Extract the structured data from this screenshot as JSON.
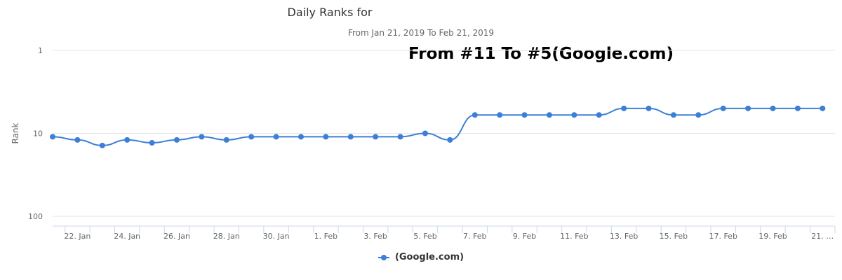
{
  "chart_data": {
    "type": "line",
    "title": "Daily Ranks for",
    "subtitle": "From Jan 21, 2019 To Feb 21, 2019",
    "annotation": "From #11 To #5(Google.com)",
    "ylabel": "Rank",
    "y_scale": "log",
    "y_reversed": true,
    "ylim": [
      1,
      100
    ],
    "y_ticks": [
      "1",
      "10",
      "100"
    ],
    "x_tick_labels": [
      "22. Jan",
      "24. Jan",
      "26. Jan",
      "28. Jan",
      "30. Jan",
      "1. Feb",
      "3. Feb",
      "5. Feb",
      "7. Feb",
      "9. Feb",
      "11. Feb",
      "13. Feb",
      "15. Feb",
      "17. Feb",
      "19. Feb",
      "21. …"
    ],
    "x": [
      "Jan 21",
      "Jan 22",
      "Jan 23",
      "Jan 24",
      "Jan 25",
      "Jan 26",
      "Jan 27",
      "Jan 28",
      "Jan 29",
      "Jan 30",
      "Jan 31",
      "Feb 1",
      "Feb 2",
      "Feb 3",
      "Feb 4",
      "Feb 5",
      "Feb 6",
      "Feb 7",
      "Feb 8",
      "Feb 9",
      "Feb 10",
      "Feb 11",
      "Feb 12",
      "Feb 13",
      "Feb 14",
      "Feb 15",
      "Feb 16",
      "Feb 17",
      "Feb 18",
      "Feb 19",
      "Feb 20",
      "Feb 21"
    ],
    "series": [
      {
        "name": "(Google.com)",
        "color": "#3d7fd6",
        "values": [
          11,
          12,
          14,
          12,
          13,
          12,
          11,
          12,
          11,
          11,
          11,
          11,
          11,
          11,
          11,
          10,
          12,
          6,
          6,
          6,
          6,
          6,
          6,
          5,
          5,
          6,
          6,
          5,
          5,
          5,
          5,
          5
        ]
      }
    ],
    "grid": true,
    "legend_position": "bottom-center"
  }
}
